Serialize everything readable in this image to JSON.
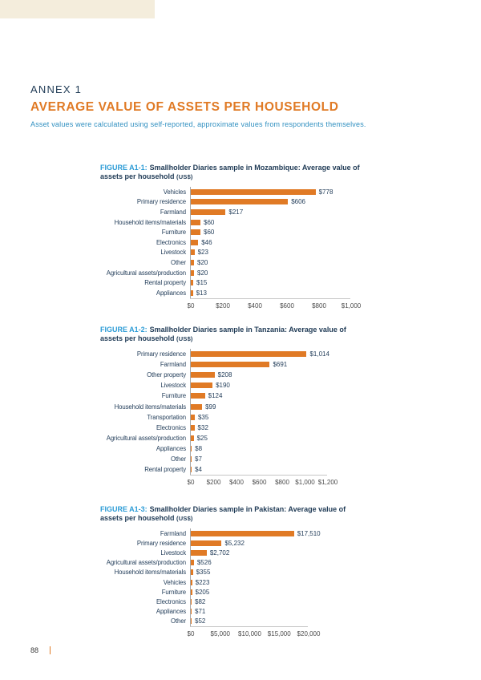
{
  "page": {
    "annex_label": "ANNEX 1",
    "title": "AVERAGE VALUE OF ASSETS PER HOUSEHOLD",
    "subtitle": "Asset values were calculated using self-reported, approximate values from respondents themselves.",
    "page_number": "88",
    "colors": {
      "accent_orange": "#e07a25",
      "navy": "#1f3a55",
      "blue": "#2d9cd6",
      "cream_band": "#f4eddc"
    }
  },
  "chart_data": [
    {
      "type": "bar",
      "orientation": "horizontal",
      "figure_label": "FIGURE A1-1:",
      "title_line1": "Smallholder Diaries sample in Mozambique: Average value of",
      "title_line2": "assets per household",
      "unit": "(US$)",
      "categories": [
        "Vehicles",
        "Primary residence",
        "Farmland",
        "Household items/materials",
        "Furniture",
        "Electronics",
        "Livestock",
        "Other",
        "Agricultural assets/production",
        "Rental property",
        "Appliances"
      ],
      "values": [
        778,
        606,
        217,
        60,
        60,
        46,
        23,
        20,
        20,
        15,
        13
      ],
      "value_labels": [
        "$778",
        "$606",
        "$217",
        "$60",
        "$60",
        "$46",
        "$23",
        "$20",
        "$20",
        "$15",
        "$13"
      ],
      "xlim": [
        0,
        1000
      ],
      "x_ticks": [
        "$0",
        "$200",
        "$400",
        "$600",
        "$800",
        "$1,000"
      ],
      "bar_color": "#e07a25",
      "grid": false,
      "legend": false
    },
    {
      "type": "bar",
      "orientation": "horizontal",
      "figure_label": "FIGURE A1-2:",
      "title_line1": "Smallholder Diaries sample in Tanzania: Average value of",
      "title_line2": "assets per household",
      "unit": "(US$)",
      "categories": [
        "Primary residence",
        "Farmland",
        "Other property",
        "Livestock",
        "Furniture",
        "Household items/materials",
        "Transportation",
        "Electronics",
        "Agricultural assets/production",
        "Appliances",
        "Other",
        "Rental property"
      ],
      "values": [
        1014,
        691,
        208,
        190,
        124,
        99,
        35,
        32,
        25,
        8,
        7,
        4
      ],
      "value_labels": [
        "$1,014",
        "$691",
        "$208",
        "$190",
        "$124",
        "$99",
        "$35",
        "$32",
        "$25",
        "$8",
        "$7",
        "$4"
      ],
      "xlim": [
        0,
        1200
      ],
      "x_ticks": [
        "$0",
        "$200",
        "$400",
        "$600",
        "$800",
        "$1,000",
        "$1,200"
      ],
      "bar_color": "#e07a25",
      "grid": false,
      "legend": false
    },
    {
      "type": "bar",
      "orientation": "horizontal",
      "figure_label": "FIGURE A1-3:",
      "title_line1": "Smallholder Diaries sample in Pakistan: Average value of",
      "title_line2": "assets per household",
      "unit": "(US$)",
      "categories": [
        "Farmland",
        "Primary residence",
        "Livestock",
        "Agricultural assets/production",
        "Household items/materials",
        "Vehicles",
        "Furniture",
        "Electronics",
        "Appliances",
        "Other"
      ],
      "values": [
        17510,
        5232,
        2702,
        526,
        355,
        223,
        205,
        82,
        71,
        52
      ],
      "value_labels": [
        "$17,510",
        "$5,232",
        "$2,702",
        "$526",
        "$355",
        "$223",
        "$205",
        "$82",
        "$71",
        "$52"
      ],
      "xlim": [
        0,
        20000
      ],
      "x_ticks": [
        "$0",
        "$5,000",
        "$10,000",
        "$15,000",
        "$20,000"
      ],
      "bar_color": "#e07a25",
      "grid": false,
      "legend": false
    }
  ]
}
